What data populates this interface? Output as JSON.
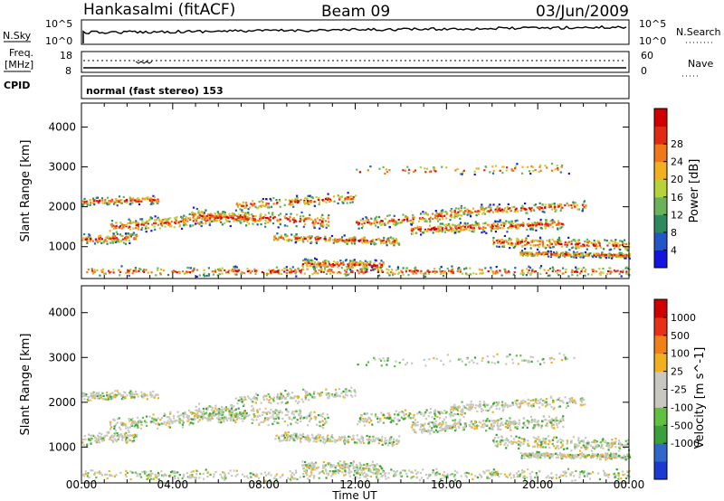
{
  "header": {
    "station": "Hankasalmi (fitACF)",
    "beam": "Beam 09",
    "date": "03/Jun/2009"
  },
  "summary_panels": {
    "nsky_label": "N.Sky",
    "nsky_ticks": [
      "10^5",
      "10^0"
    ],
    "nsearch_label": "N.Search",
    "nsearch_ticks": [
      "10^5",
      "10^0"
    ],
    "freq_label_line1": "Freq.",
    "freq_label_line2": "[MHz]",
    "freq_ticks": [
      "18",
      "8"
    ],
    "nave_label": "Nave",
    "nave_ticks": [
      "60",
      "0"
    ],
    "cpid_label": "CPID",
    "cpid_text": "normal (fast stereo) 153"
  },
  "chart_data": [
    {
      "type": "heatmap",
      "title": "",
      "xlabel": "Time UT",
      "ylabel": "Slant Range [km]",
      "x_ticks": [
        "00:00",
        "04:00",
        "08:00",
        "12:00",
        "16:00",
        "20:00",
        "00:00"
      ],
      "y_ticks": [
        "1000",
        "2000",
        "3000",
        "4000"
      ],
      "ylim": [
        200,
        4600
      ],
      "colorbar_label": "Power [dB]",
      "colorbar_ticks": [
        "4",
        "8",
        "12",
        "16",
        "20",
        "24",
        "28"
      ],
      "colorbar_colors": [
        "#1414e0",
        "#2456c8",
        "#2e8a5e",
        "#6ab35a",
        "#b8d23a",
        "#f0b020",
        "#f07818",
        "#e02a14",
        "#d00000"
      ],
      "grid": false
    },
    {
      "type": "heatmap",
      "title": "",
      "xlabel": "Time UT",
      "ylabel": "Slant Range [km]",
      "x_ticks": [
        "00:00",
        "04:00",
        "08:00",
        "12:00",
        "16:00",
        "20:00",
        "00:00"
      ],
      "y_ticks": [
        "1000",
        "2000",
        "3000",
        "4000"
      ],
      "ylim": [
        200,
        4600
      ],
      "colorbar_label": "Velocity [m s^-1]",
      "colorbar_ticks": [
        "1000",
        "500",
        "100",
        "25",
        "-25",
        "-100",
        "-500",
        "-1000"
      ],
      "colorbar_colors": [
        "#1a3ad0",
        "#2f68c8",
        "#3aa03a",
        "#62c040",
        "#c8c8c0",
        "#c8c8c0",
        "#f0b020",
        "#f08018",
        "#e83018",
        "#d00000"
      ],
      "grid": false
    }
  ]
}
